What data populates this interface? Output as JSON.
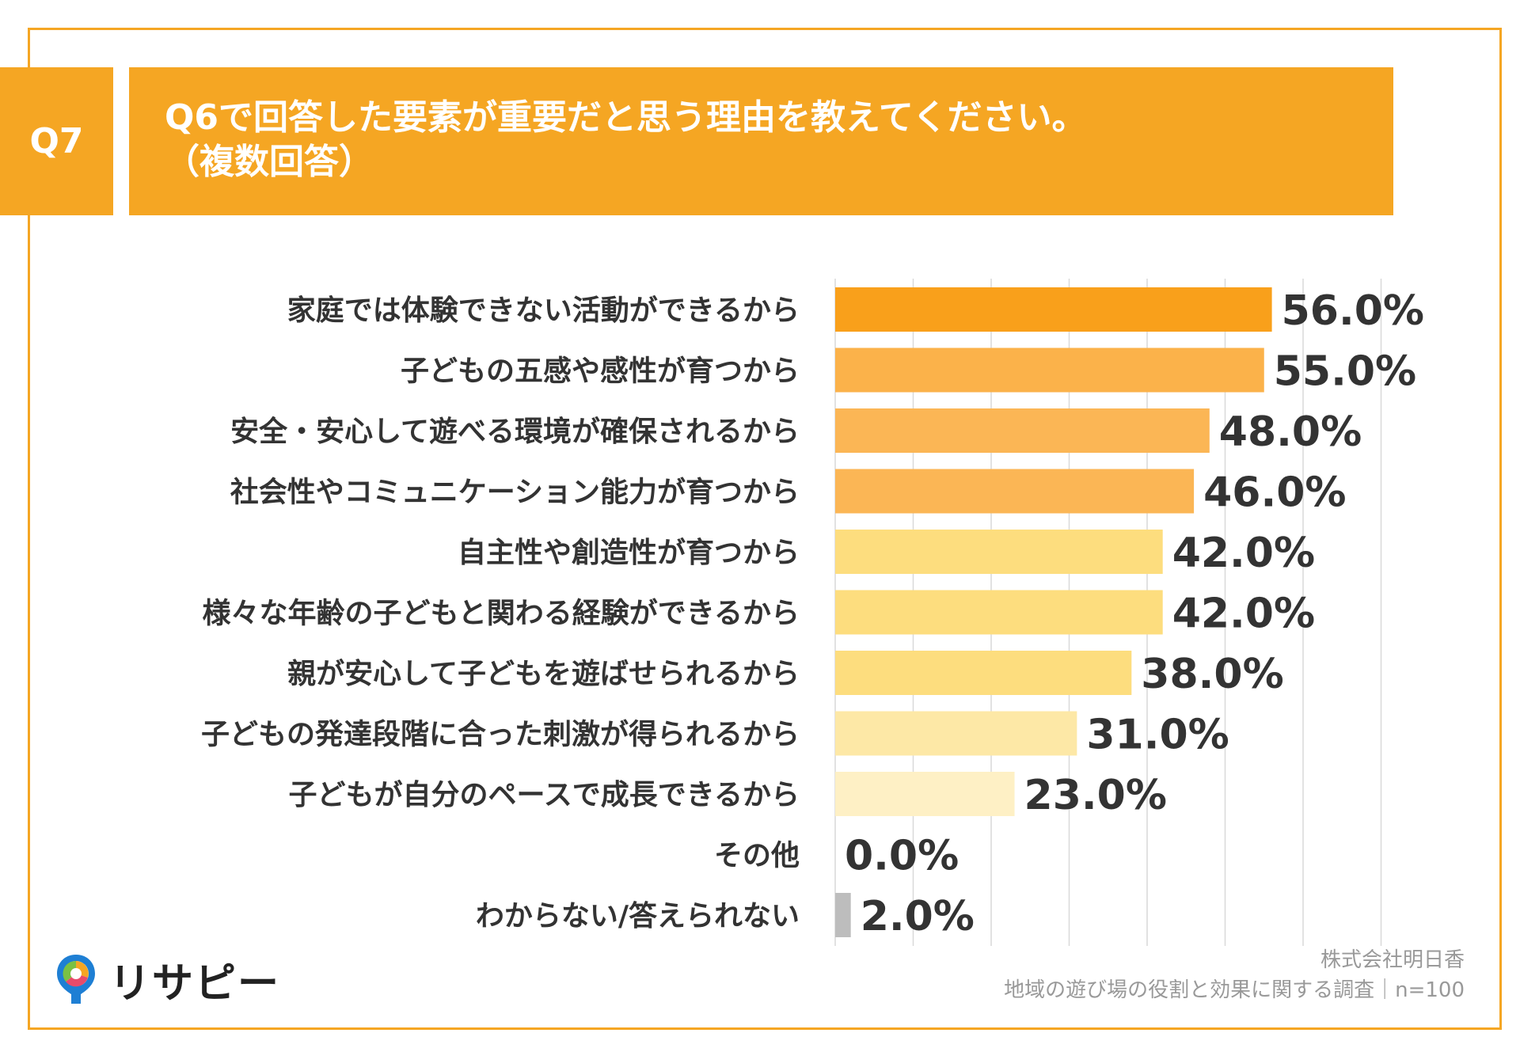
{
  "header": {
    "badge": "Q7",
    "title_line1": "Q6で回答した要素が重要だと思う理由を教えてください。",
    "title_line2": "（複数回答）"
  },
  "chart_data": {
    "type": "bar",
    "orientation": "horizontal",
    "categories": [
      "家庭では体験できない活動ができるから",
      "子どもの五感や感性が育つから",
      "安全・安心して遊べる環境が確保されるから",
      "社会性やコミュニケーション能力が育つから",
      "自主性や創造性が育つから",
      "様々な年齢の子どもと関わる経験ができるから",
      "親が安心して子どもを遊ばせられるから",
      "子どもの発達段階に合った刺激が得られるから",
      "子どもが自分のペースで成長できるから",
      "その他",
      "わからない/答えられない"
    ],
    "values": [
      56.0,
      55.0,
      48.0,
      46.0,
      42.0,
      42.0,
      38.0,
      31.0,
      23.0,
      0.0,
      2.0
    ],
    "value_labels": [
      "56.0%",
      "55.0%",
      "48.0%",
      "46.0%",
      "42.0%",
      "42.0%",
      "38.0%",
      "31.0%",
      "23.0%",
      "0.0%",
      "2.0%"
    ],
    "colors": [
      "#F9A01B",
      "#FBB24A",
      "#FBB655",
      "#FBB655",
      "#FDDD7E",
      "#FDDD7E",
      "#FDDD7E",
      "#FDE8A6",
      "#FEF0C5",
      "#FEF0C5",
      "#BDBDBD"
    ],
    "xlim": [
      0,
      70
    ],
    "grid": true,
    "unit": "%"
  },
  "footer": {
    "logo_text": "リサピー",
    "source_line1": "株式会社明日香",
    "source_line2": "地域の遊び場の役割と効果に関する調査｜n=100"
  }
}
